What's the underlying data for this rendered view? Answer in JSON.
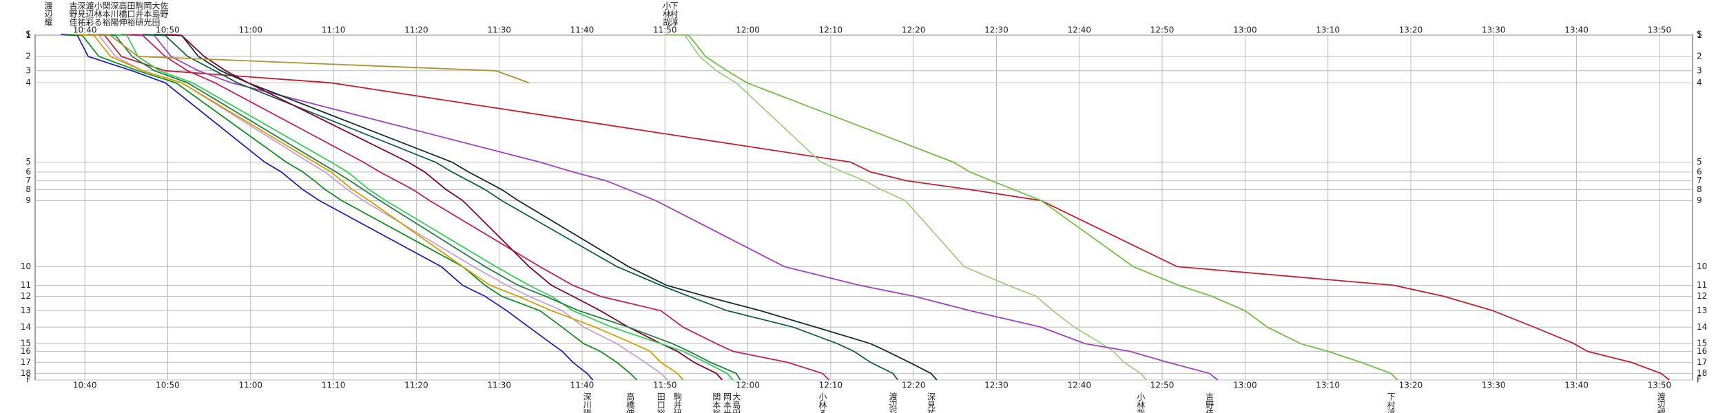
{
  "chart_data": {
    "type": "line",
    "xlim": [
      634,
      834
    ],
    "xticks": [
      {
        "value": 640,
        "label": "10:40"
      },
      {
        "value": 650,
        "label": "10:50"
      },
      {
        "value": 660,
        "label": "11:00"
      },
      {
        "value": 670,
        "label": "11:10"
      },
      {
        "value": 680,
        "label": "11:20"
      },
      {
        "value": 690,
        "label": "11:30"
      },
      {
        "value": 700,
        "label": "11:40"
      },
      {
        "value": 710,
        "label": "11:50"
      },
      {
        "value": 720,
        "label": "12:00"
      },
      {
        "value": 730,
        "label": "12:10"
      },
      {
        "value": 740,
        "label": "12:20"
      },
      {
        "value": 750,
        "label": "12:30"
      },
      {
        "value": 760,
        "label": "12:40"
      },
      {
        "value": 770,
        "label": "12:50"
      },
      {
        "value": 780,
        "label": "13:00"
      },
      {
        "value": 790,
        "label": "13:10"
      },
      {
        "value": 800,
        "label": "13:20"
      },
      {
        "value": 810,
        "label": "13:30"
      },
      {
        "value": 820,
        "label": "13:40"
      },
      {
        "value": 830,
        "label": "13:50"
      }
    ],
    "ylim": [
      0,
      314
    ],
    "yticks": [
      {
        "value": 0,
        "label": "S"
      },
      1,
      {
        "value": 20,
        "label": "2"
      },
      {
        "value": 33,
        "label": "3"
      },
      {
        "value": 44,
        "label": "4"
      },
      {
        "value": 116,
        "label": "5"
      },
      {
        "value": 125,
        "label": "6"
      },
      {
        "value": 133,
        "label": "7"
      },
      {
        "value": 141,
        "label": "8"
      },
      {
        "value": 151,
        "label": "9"
      },
      {
        "value": 211,
        "label": "10"
      },
      {
        "value": 228,
        "label": "11"
      },
      {
        "value": 238,
        "label": "12"
      },
      {
        "value": 251,
        "label": "13"
      },
      {
        "value": 266,
        "label": "14"
      },
      {
        "value": 281,
        "label": "15"
      },
      {
        "value": 288,
        "label": "16"
      },
      {
        "value": 298,
        "label": "17"
      },
      {
        "value": 308,
        "label": "18"
      },
      {
        "value": 314,
        "label": "F"
      }
    ],
    "grid": true,
    "series": [
      {
        "name": "渡辺耀",
        "color": "#c02030",
        "values": [
          640.4,
          642.4,
          644.4,
          649.7,
          669.7,
          732.4,
          734.8,
          739.2,
          746.8,
          755.4,
          771.8,
          798.0,
          804.0,
          809.9,
          814.9,
          819.7,
          821.3,
          826.6,
          830.2,
          831.2
        ]
      },
      {
        "name": "下村淳",
        "color": "#70c040",
        "values": [
          710,
          712.9,
          714.9,
          717.5,
          719.9,
          744.8,
          746.8,
          749.4,
          752.1,
          755.4,
          766.5,
          772,
          776,
          780,
          782.7,
          786.7,
          790,
          794,
          797.6,
          798.4
        ]
      },
      {
        "name": "小林哉",
        "color": "#a0d080",
        "values": [
          710.2,
          712.4,
          714.2,
          716.2,
          718.6,
          728.8,
          731.5,
          734.1,
          736.1,
          739,
          746.1,
          751.4,
          754.8,
          756.8,
          759.4,
          762.7,
          764.1,
          765.4,
          767.4,
          768.1
        ]
      },
      {
        "name": "吉野佳",
        "color": "#a040c0",
        "values": [
          645.7,
          648.4,
          650.4,
          653.7,
          657.7,
          694.9,
          698.9,
          702.9,
          705.6,
          708.9,
          724.4,
          733.5,
          740.1,
          746.8,
          755.4,
          760.7,
          766.1,
          770.7,
          775.7,
          776.7
        ]
      },
      {
        "name": "深見祐",
        "color": "#103030",
        "values": [
          648.4,
          651.7,
          653.7,
          656.4,
          659.7,
          684.3,
          686.3,
          688.3,
          690.3,
          692.3,
          705.6,
          710.2,
          714.9,
          721.5,
          728.2,
          734.8,
          736.8,
          739.5,
          742.1,
          742.8
        ]
      },
      {
        "name": "渡辺彩",
        "color": "#106040",
        "values": [
          647,
          649.7,
          652.4,
          655.7,
          658.4,
          682.3,
          684.3,
          686.3,
          688.3,
          690.3,
          704.2,
          709.5,
          712.9,
          717.5,
          725.5,
          730.8,
          732.8,
          734.8,
          737.5,
          738.1
        ]
      },
      {
        "name": "小林る",
        "color": "#c02060",
        "values": [
          644.4,
          647,
          649.7,
          652.4,
          655.7,
          673.6,
          675.6,
          677.6,
          679.6,
          681.6,
          694.9,
          698.9,
          702.2,
          709.5,
          712.2,
          716.2,
          718.2,
          724.8,
          729,
          729.8
        ]
      },
      {
        "name": "関本裕",
        "color": "#800030",
        "values": [
          649.7,
          651.7,
          654.4,
          657,
          659.7,
          679,
          681,
          682.3,
          683.6,
          685.6,
          693.6,
          696.3,
          698.9,
          702.2,
          705.6,
          709.5,
          711.5,
          713.5,
          716.2,
          716.9
        ]
      },
      {
        "name": "深川陽",
        "color": "#2020c0",
        "values": [
          637.1,
          639.1,
          640.4,
          645.7,
          649.7,
          661.7,
          663.7,
          665,
          666.3,
          668.3,
          683,
          685.6,
          688.3,
          690.9,
          693.6,
          696.3,
          697.6,
          698.9,
          700.6,
          701.3
        ]
      },
      {
        "name": "高橋伸",
        "color": "#109020",
        "values": [
          637.7,
          639.7,
          641.7,
          646.4,
          651,
          664.3,
          666.3,
          667.7,
          669,
          671,
          685.6,
          688.3,
          690.3,
          694.9,
          697.6,
          700.2,
          702.2,
          704.2,
          705.8,
          706.6
        ]
      },
      {
        "name": "田口裕",
        "color": "#c8a0d8",
        "values": [
          639.7,
          641.7,
          643.7,
          647,
          651.7,
          667,
          669,
          670.3,
          671.7,
          673.6,
          686.9,
          690.9,
          693.6,
          697.6,
          700.2,
          704.2,
          705.6,
          707.6,
          709.5,
          710.3
        ]
      },
      {
        "name": "駒井研",
        "color": "#d0a000",
        "values": [
          639.1,
          641.1,
          643.1,
          647,
          651.7,
          667.7,
          669.7,
          671,
          672.3,
          674.3,
          685.6,
          688.9,
          692.3,
          696.3,
          701.6,
          706.2,
          708.2,
          709.5,
          711.5,
          712.2
        ]
      },
      {
        "name": "岡本光",
        "color": "#30d050",
        "values": [
          643.1,
          645.1,
          646.4,
          649,
          653,
          669.7,
          671.7,
          673,
          674.3,
          676.3,
          689.6,
          693.6,
          696.3,
          698.9,
          703.6,
          709.5,
          712.2,
          714.9,
          717.5,
          718.2
        ]
      },
      {
        "name": "大島田",
        "color": "#208040",
        "values": [
          641.7,
          643.7,
          645.7,
          648.4,
          652.4,
          668.3,
          670.3,
          672,
          673.6,
          675.6,
          688.3,
          692.3,
          695.6,
          699.6,
          705.6,
          710.9,
          712.9,
          715.5,
          718.6,
          719.1
        ]
      },
      {
        "name": "佐野",
        "color": "#b09030",
        "values": [
          640.4,
          643.1,
          646.4,
          689.6,
          693.6,
          null,
          null,
          null,
          null,
          null,
          null,
          null,
          null,
          null,
          null,
          null,
          null,
          null,
          null,
          null
        ]
      }
    ]
  }
}
